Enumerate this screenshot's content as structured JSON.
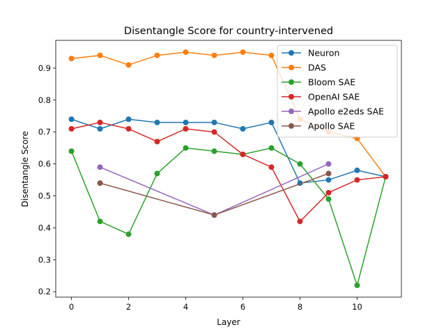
{
  "chart_data": {
    "type": "line",
    "title": "Disentangle Score for country-intervened",
    "xlabel": "Layer",
    "ylabel": "Disentangle Score",
    "xlim": [
      -0.55,
      11.55
    ],
    "ylim": [
      0.183,
      0.987
    ],
    "xticks": [
      "0",
      "2",
      "4",
      "6",
      "8",
      "10"
    ],
    "yticks": [
      "0.2",
      "0.3",
      "0.4",
      "0.5",
      "0.6",
      "0.7",
      "0.8",
      "0.9"
    ],
    "grid": false,
    "legend_position": "top-right",
    "series": [
      {
        "name": "Neuron",
        "color": "#1f77b4",
        "x": [
          0,
          1,
          2,
          3,
          4,
          5,
          6,
          7,
          8,
          9,
          10,
          11
        ],
        "y": [
          0.74,
          0.71,
          0.74,
          0.73,
          0.73,
          0.73,
          0.71,
          0.73,
          0.54,
          0.55,
          0.58,
          0.56
        ]
      },
      {
        "name": "DAS",
        "color": "#ff7f0e",
        "x": [
          0,
          1,
          2,
          3,
          4,
          5,
          6,
          7,
          8,
          9,
          10,
          11
        ],
        "y": [
          0.93,
          0.94,
          0.91,
          0.94,
          0.95,
          0.94,
          0.95,
          0.94,
          0.74,
          0.7,
          0.68,
          0.56
        ]
      },
      {
        "name": "Bloom SAE",
        "color": "#2ca02c",
        "x": [
          0,
          1,
          2,
          3,
          4,
          5,
          6,
          7,
          8,
          9,
          10,
          11
        ],
        "y": [
          0.64,
          0.42,
          0.38,
          0.57,
          0.65,
          0.64,
          0.63,
          0.65,
          0.6,
          0.49,
          0.22,
          0.56
        ]
      },
      {
        "name": "OpenAI SAE",
        "color": "#d62728",
        "x": [
          0,
          1,
          2,
          3,
          4,
          5,
          6,
          7,
          8,
          9,
          10,
          11
        ],
        "y": [
          0.71,
          0.73,
          0.71,
          0.67,
          0.71,
          0.7,
          0.63,
          0.59,
          0.42,
          0.51,
          0.55,
          0.56
        ]
      },
      {
        "name": "Apollo e2eds SAE",
        "color": "#9467bd",
        "x": [
          1,
          5,
          9
        ],
        "y": [
          0.59,
          0.44,
          0.6
        ]
      },
      {
        "name": "Apollo SAE",
        "color": "#8c564b",
        "x": [
          1,
          5,
          9
        ],
        "y": [
          0.54,
          0.44,
          0.57
        ]
      }
    ]
  }
}
